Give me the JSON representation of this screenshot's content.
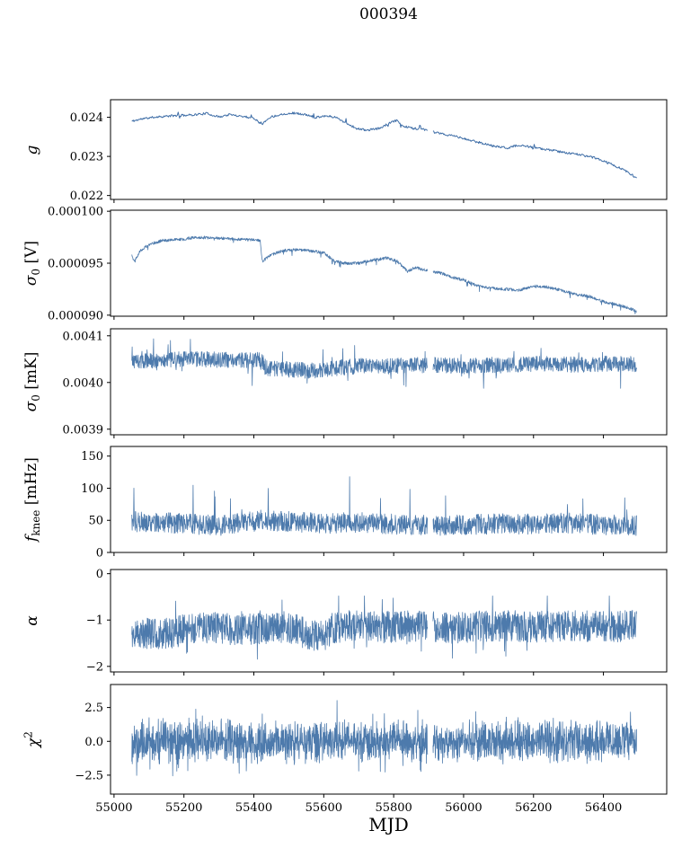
{
  "chart_data": {
    "type": "line",
    "title": "000394",
    "xlabel": "MJD",
    "x_axis": {
      "xlim": [
        54990,
        56581
      ],
      "data_range_mjd": [
        55051,
        56495
      ],
      "data_gap_mjd": [
        55897,
        55912
      ],
      "ticks": [
        {
          "v": 55000,
          "label": "55000"
        },
        {
          "v": 55200,
          "label": "55200"
        },
        {
          "v": 55400,
          "label": "55400"
        },
        {
          "v": 55600,
          "label": "55600"
        },
        {
          "v": 55800,
          "label": "55800"
        },
        {
          "v": 56000,
          "label": "56000"
        },
        {
          "v": 56200,
          "label": "56200"
        },
        {
          "v": 56400,
          "label": "56400"
        }
      ]
    },
    "line_color": "#4d7aac",
    "panels": [
      {
        "id": "g",
        "ylabel": {
          "sym": "g",
          "sub": "",
          "sup": "",
          "unit": ""
        },
        "ylim": [
          0.0219,
          0.02445
        ],
        "yticks": [
          {
            "v": 0.024,
            "label": "0.024"
          },
          {
            "v": 0.023,
            "label": "0.023"
          },
          {
            "v": 0.022,
            "label": "0.022"
          }
        ],
        "style": "line",
        "color": "#3f6ea7",
        "noise_amp": 2.8e-05,
        "spikes": {
          "prob": 0.012,
          "min": 4e-05,
          "max": 0.00011,
          "sign": 0
        },
        "clamp": [
          0.0221,
          0.02435
        ],
        "trend": [
          [
            55051,
            0.0239
          ],
          [
            55080,
            0.02396
          ],
          [
            55120,
            0.02401
          ],
          [
            55170,
            0.02404
          ],
          [
            55220,
            0.02406
          ],
          [
            55265,
            0.0241
          ],
          [
            55300,
            0.02401
          ],
          [
            55330,
            0.02407
          ],
          [
            55365,
            0.02403
          ],
          [
            55400,
            0.02398
          ],
          [
            55425,
            0.02383
          ],
          [
            55445,
            0.024
          ],
          [
            55480,
            0.02408
          ],
          [
            55515,
            0.02411
          ],
          [
            55545,
            0.02407
          ],
          [
            55575,
            0.024
          ],
          [
            55605,
            0.02404
          ],
          [
            55635,
            0.024
          ],
          [
            55665,
            0.02385
          ],
          [
            55695,
            0.02371
          ],
          [
            55725,
            0.02367
          ],
          [
            55760,
            0.02372
          ],
          [
            55795,
            0.02388
          ],
          [
            55810,
            0.02392
          ],
          [
            55825,
            0.02378
          ],
          [
            55855,
            0.02372
          ],
          [
            55885,
            0.02369
          ],
          [
            55915,
            0.02362
          ],
          [
            55945,
            0.02356
          ],
          [
            55975,
            0.02352
          ],
          [
            56005,
            0.02344
          ],
          [
            56035,
            0.02338
          ],
          [
            56065,
            0.02331
          ],
          [
            56095,
            0.02325
          ],
          [
            56125,
            0.02322
          ],
          [
            56155,
            0.02328
          ],
          [
            56185,
            0.02325
          ],
          [
            56215,
            0.0232
          ],
          [
            56245,
            0.02317
          ],
          [
            56275,
            0.02312
          ],
          [
            56305,
            0.02308
          ],
          [
            56335,
            0.02304
          ],
          [
            56365,
            0.02299
          ],
          [
            56395,
            0.0229
          ],
          [
            56425,
            0.02279
          ],
          [
            56455,
            0.02267
          ],
          [
            56480,
            0.02254
          ],
          [
            56495,
            0.02243
          ]
        ]
      },
      {
        "id": "sigma0-V",
        "ylabel": {
          "sym": "σ",
          "sub": "0",
          "sup": "",
          "unit": " [V]"
        },
        "ylim": [
          8.99e-05,
          0.0001001
        ],
        "yticks": [
          {
            "v": 0.0001,
            "label": "0.000100"
          },
          {
            "v": 9.5e-05,
            "label": "0.000095"
          },
          {
            "v": 9e-05,
            "label": "0.000090"
          }
        ],
        "style": "noisy",
        "color": "#4d7aac",
        "noise_amp": 1.4e-07,
        "spikes": {
          "prob": 0.02,
          "min": 2e-07,
          "max": 5.5e-07,
          "sign": -1
        },
        "clamp": [
          9.01e-05,
          9.83e-05
        ],
        "trend": [
          [
            55051,
            9.58e-05
          ],
          [
            55058,
            9.52e-05
          ],
          [
            55075,
            9.62e-05
          ],
          [
            55100,
            9.68e-05
          ],
          [
            55140,
            9.72e-05
          ],
          [
            55200,
            9.73e-05
          ],
          [
            55230,
            9.75e-05
          ],
          [
            55300,
            9.74e-05
          ],
          [
            55360,
            9.73e-05
          ],
          [
            55418,
            9.72e-05
          ],
          [
            55424,
            9.52e-05
          ],
          [
            55450,
            9.58e-05
          ],
          [
            55480,
            9.62e-05
          ],
          [
            55520,
            9.63e-05
          ],
          [
            55560,
            9.62e-05
          ],
          [
            55600,
            9.6e-05
          ],
          [
            55630,
            9.52e-05
          ],
          [
            55660,
            9.5e-05
          ],
          [
            55700,
            9.5e-05
          ],
          [
            55740,
            9.53e-05
          ],
          [
            55780,
            9.55e-05
          ],
          [
            55810,
            9.52e-05
          ],
          [
            55840,
            9.42e-05
          ],
          [
            55862,
            9.46e-05
          ],
          [
            55882,
            9.44e-05
          ],
          [
            55912,
            9.42e-05
          ],
          [
            55940,
            9.4e-05
          ],
          [
            55970,
            9.36e-05
          ],
          [
            56000,
            9.34e-05
          ],
          [
            56040,
            9.28e-05
          ],
          [
            56080,
            9.26e-05
          ],
          [
            56120,
            9.25e-05
          ],
          [
            56160,
            9.24e-05
          ],
          [
            56200,
            9.28e-05
          ],
          [
            56240,
            9.27e-05
          ],
          [
            56280,
            9.24e-05
          ],
          [
            56320,
            9.2e-05
          ],
          [
            56360,
            9.18e-05
          ],
          [
            56400,
            9.13e-05
          ],
          [
            56440,
            9.1e-05
          ],
          [
            56470,
            9.07e-05
          ],
          [
            56495,
            9.04e-05
          ]
        ]
      },
      {
        "id": "sigma0-mK",
        "ylabel": {
          "sym": "σ",
          "sub": "0",
          "sup": "",
          "unit": " [mK]"
        },
        "ylim": [
          0.003888,
          0.004115
        ],
        "yticks": [
          {
            "v": 0.0041,
            "label": "0.0041"
          },
          {
            "v": 0.004,
            "label": "0.0040"
          },
          {
            "v": 0.0039,
            "label": "0.0039"
          }
        ],
        "style": "noisy",
        "color": "#4d7aac",
        "noise_amp": 1.7e-05,
        "spikes": {
          "prob": 0.025,
          "min": 1.5e-05,
          "max": 4.2e-05,
          "sign": 0
        },
        "clamp": [
          0.003955,
          0.004105
        ],
        "trend": [
          [
            55051,
            0.004045
          ],
          [
            55150,
            0.004048
          ],
          [
            55250,
            0.00405
          ],
          [
            55350,
            0.004047
          ],
          [
            55420,
            0.00405
          ],
          [
            55435,
            0.00403
          ],
          [
            55500,
            0.004028
          ],
          [
            55560,
            0.004025
          ],
          [
            55620,
            0.00403
          ],
          [
            55700,
            0.004035
          ],
          [
            55800,
            0.004035
          ],
          [
            55900,
            0.004038
          ],
          [
            56000,
            0.004035
          ],
          [
            56100,
            0.004038
          ],
          [
            56200,
            0.00404
          ],
          [
            56300,
            0.004038
          ],
          [
            56400,
            0.00404
          ],
          [
            56495,
            0.00404
          ]
        ]
      },
      {
        "id": "fknee",
        "ylabel": {
          "sym": "f",
          "sub": "knee",
          "sup": "",
          "unit": " [mHz]"
        },
        "ylim": [
          0,
          165
        ],
        "yticks": [
          {
            "v": 150,
            "label": "150"
          },
          {
            "v": 100,
            "label": "100"
          },
          {
            "v": 50,
            "label": "50"
          },
          {
            "v": 0,
            "label": "0"
          }
        ],
        "style": "noisy",
        "color": "#4d7aac",
        "noise_amp": 16,
        "spikes": {
          "prob": 0.012,
          "min": 25,
          "max": 65,
          "sign": 1
        },
        "clamp": [
          14,
          118
        ],
        "trend": [
          [
            55051,
            48
          ],
          [
            55200,
            45
          ],
          [
            55300,
            42
          ],
          [
            55420,
            50
          ],
          [
            55500,
            48
          ],
          [
            55600,
            45
          ],
          [
            55700,
            47
          ],
          [
            55800,
            44
          ],
          [
            55900,
            42
          ],
          [
            56000,
            43
          ],
          [
            56100,
            45
          ],
          [
            56200,
            44
          ],
          [
            56300,
            46
          ],
          [
            56400,
            43
          ],
          [
            56495,
            42
          ]
        ]
      },
      {
        "id": "alpha",
        "ylabel": {
          "sym": "α",
          "sub": "",
          "sup": "",
          "unit": ""
        },
        "ylim": [
          -2.12,
          0.09
        ],
        "yticks": [
          {
            "v": 0,
            "label": "0"
          },
          {
            "v": -1,
            "label": "−1"
          },
          {
            "v": -2,
            "label": "−2"
          }
        ],
        "style": "noisy",
        "color": "#4d7aac",
        "noise_amp": 0.34,
        "spikes": {
          "prob": 0.03,
          "min": 0.2,
          "max": 0.55,
          "sign": 0
        },
        "clamp": [
          -1.97,
          -0.48
        ],
        "trend": [
          [
            55051,
            -1.28
          ],
          [
            55150,
            -1.3
          ],
          [
            55220,
            -1.18
          ],
          [
            55280,
            -1.15
          ],
          [
            55350,
            -1.22
          ],
          [
            55420,
            -1.18
          ],
          [
            55500,
            -1.15
          ],
          [
            55560,
            -1.32
          ],
          [
            55600,
            -1.35
          ],
          [
            55640,
            -1.15
          ],
          [
            55700,
            -1.12
          ],
          [
            55800,
            -1.15
          ],
          [
            55900,
            -1.12
          ],
          [
            55950,
            -1.18
          ],
          [
            56000,
            -1.15
          ],
          [
            56100,
            -1.12
          ],
          [
            56200,
            -1.15
          ],
          [
            56300,
            -1.12
          ],
          [
            56400,
            -1.15
          ],
          [
            56495,
            -1.12
          ]
        ]
      },
      {
        "id": "chi2",
        "ylabel": {
          "sym": "χ",
          "sub": "",
          "sup": "2",
          "unit": ""
        },
        "ylim": [
          -3.9,
          4.2
        ],
        "yticks": [
          {
            "v": 2.5,
            "label": "2.5"
          },
          {
            "v": 0.0,
            "label": "0.0"
          },
          {
            "v": -2.5,
            "label": "−2.5"
          }
        ],
        "style": "noisy",
        "color": "#4d7aac",
        "noise_amp": 1.75,
        "spikes": {
          "prob": 0.05,
          "min": 0.6,
          "max": 1.6,
          "sign": 0
        },
        "clamp": [
          -3.55,
          3.35
        ],
        "trend": [
          [
            55051,
            0
          ],
          [
            56495,
            0
          ]
        ]
      }
    ]
  }
}
